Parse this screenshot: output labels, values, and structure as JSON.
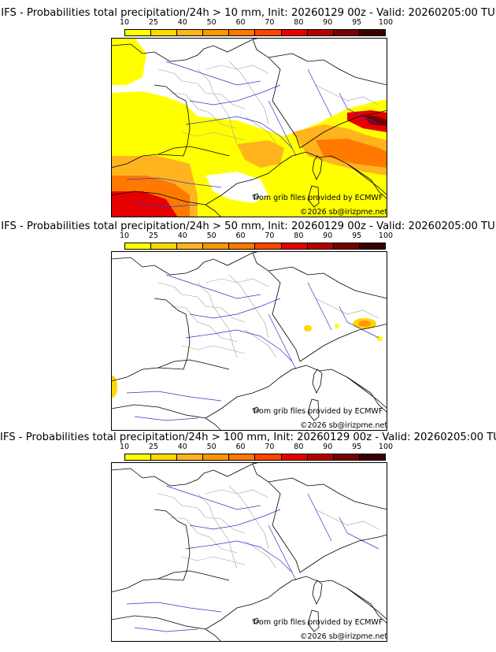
{
  "panels": [
    {
      "title": "IFS - Probabilities total precipitation/24h > 10 mm, Init: 20260129 00z - Valid: 20260205:00 TU",
      "credit_source": "from grib files provided by ECMWF",
      "credit_copyright": "©2026 sb@irizpme.net",
      "precip_level": "high"
    },
    {
      "title": "IFS - Probabilities total precipitation/24h > 50 mm, Init: 20260129 00z - Valid: 20260205:00 TU",
      "credit_source": "from grib files provided by ECMWF",
      "credit_copyright": "©2026 sb@irizpme.net",
      "precip_level": "medium"
    },
    {
      "title": "IFS - Probabilities total precipitation/24h > 100 mm, Init: 20260129 00z - Valid: 20260205:00 TU",
      "credit_source": "from grib files provided by ECMWF",
      "credit_copyright": "©2026 sb@irizpme.net",
      "precip_level": "none"
    }
  ],
  "colorbar": {
    "ticks": [
      "10",
      "25",
      "40",
      "50",
      "60",
      "70",
      "80",
      "90",
      "95",
      "100"
    ],
    "colors": [
      "#ffff00",
      "#ffd700",
      "#ffb41e",
      "#ff9600",
      "#ff7800",
      "#ff4600",
      "#e60000",
      "#b40000",
      "#780000",
      "#3c0000"
    ]
  },
  "map_colors": {
    "border": "#000000",
    "river": "#3333cc",
    "admin": "#a0a0a0"
  }
}
